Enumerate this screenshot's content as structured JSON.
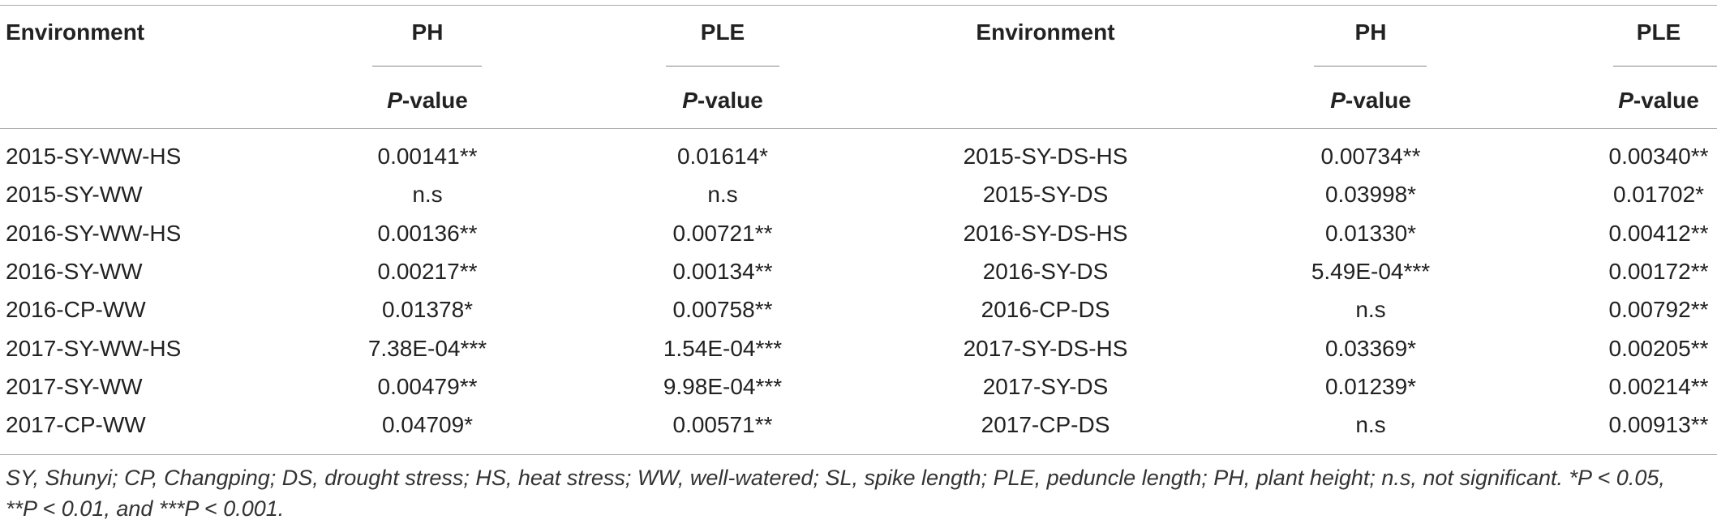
{
  "table": {
    "header": [
      "Environment",
      "PH",
      "PLE",
      "Environment",
      "PH",
      "PLE"
    ],
    "subheader": [
      {
        "italic": "P",
        "text": "-value"
      },
      {
        "italic": "P",
        "text": "-value"
      },
      {
        "italic": "P",
        "text": "-value"
      },
      {
        "italic": "P",
        "text": "-value"
      }
    ],
    "rows": [
      [
        "2015-SY-WW-HS",
        "0.00141**",
        "0.01614*",
        "2015-SY-DS-HS",
        "0.00734**",
        "0.00340**"
      ],
      [
        "2015-SY-WW",
        "n.s",
        "n.s",
        "2015-SY-DS",
        "0.03998*",
        "0.01702*"
      ],
      [
        "2016-SY-WW-HS",
        "0.00136**",
        "0.00721**",
        "2016-SY-DS-HS",
        "0.01330*",
        "0.00412**"
      ],
      [
        "2016-SY-WW",
        "0.00217**",
        "0.00134**",
        "2016-SY-DS",
        "5.49E-04***",
        "0.00172**"
      ],
      [
        "2016-CP-WW",
        "0.01378*",
        "0.00758**",
        "2016-CP-DS",
        "n.s",
        "0.00792**"
      ],
      [
        "2017-SY-WW-HS",
        "7.38E-04***",
        "1.54E-04***",
        "2017-SY-DS-HS",
        "0.03369*",
        "0.00205**"
      ],
      [
        "2017-SY-WW",
        "0.00479**",
        "9.98E-04***",
        "2017-SY-DS",
        "0.01239*",
        "0.00214**"
      ],
      [
        "2017-CP-WW",
        "0.04709*",
        "0.00571**",
        "2017-CP-DS",
        "n.s",
        "0.00913**"
      ]
    ],
    "footnote": "SY, Shunyi; CP, Changping; DS, drought stress; HS, heat stress; WW, well-watered; SL, spike length; PLE, peduncle length; PH, plant height; n.s, not significant. *P < 0.05, **P < 0.01, and ***P < 0.001."
  }
}
